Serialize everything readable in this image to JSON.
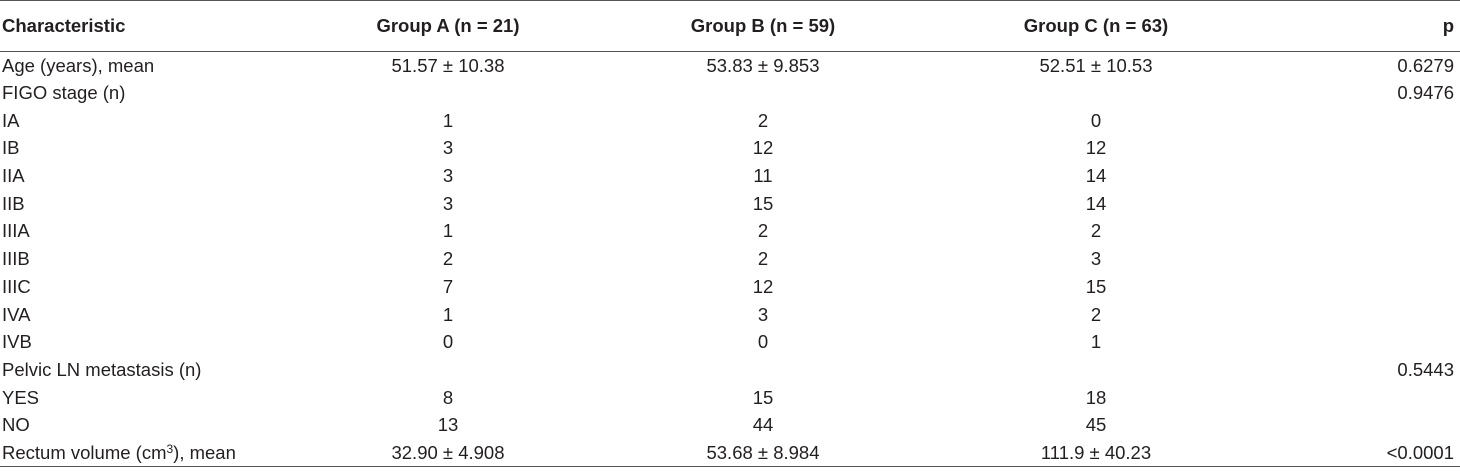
{
  "table": {
    "headers": [
      "Characteristic",
      "Group A (n = 21)",
      "Group B (n = 59)",
      "Group C (n = 63)",
      "p"
    ],
    "rows": [
      {
        "label": "Age (years), mean",
        "a": "51.57 ± 10.38",
        "b": "53.83 ± 9.853",
        "c": "52.51 ± 10.53",
        "p": "0.6279"
      },
      {
        "label": "FIGO stage (n)",
        "a": "",
        "b": "",
        "c": "",
        "p": "0.9476"
      },
      {
        "label": "IA",
        "a": "1",
        "b": "2",
        "c": "0",
        "p": ""
      },
      {
        "label": "IB",
        "a": "3",
        "b": "12",
        "c": "12",
        "p": ""
      },
      {
        "label": "IIA",
        "a": "3",
        "b": "11",
        "c": "14",
        "p": ""
      },
      {
        "label": "IIB",
        "a": "3",
        "b": "15",
        "c": "14",
        "p": ""
      },
      {
        "label": "IIIA",
        "a": "1",
        "b": "2",
        "c": "2",
        "p": ""
      },
      {
        "label": "IIIB",
        "a": "2",
        "b": "2",
        "c": "3",
        "p": ""
      },
      {
        "label": "IIIC",
        "a": "7",
        "b": "12",
        "c": "15",
        "p": ""
      },
      {
        "label": "IVA",
        "a": "1",
        "b": "3",
        "c": "2",
        "p": ""
      },
      {
        "label": "IVB",
        "a": "0",
        "b": "0",
        "c": "1",
        "p": ""
      },
      {
        "label": "Pelvic LN metastasis (n)",
        "a": "",
        "b": "",
        "c": "",
        "p": "0.5443"
      },
      {
        "label": "YES",
        "a": "8",
        "b": "15",
        "c": "18",
        "p": ""
      },
      {
        "label": "NO",
        "a": "13",
        "b": "44",
        "c": "45",
        "p": ""
      },
      {
        "label_pre": "Rectum volume (cm",
        "label_sup": "3",
        "label_post": "), mean",
        "a": "32.90 ± 4.908",
        "b": "53.68 ± 8.984",
        "c": "111.9 ± 40.23",
        "p": "<0.0001"
      }
    ]
  }
}
